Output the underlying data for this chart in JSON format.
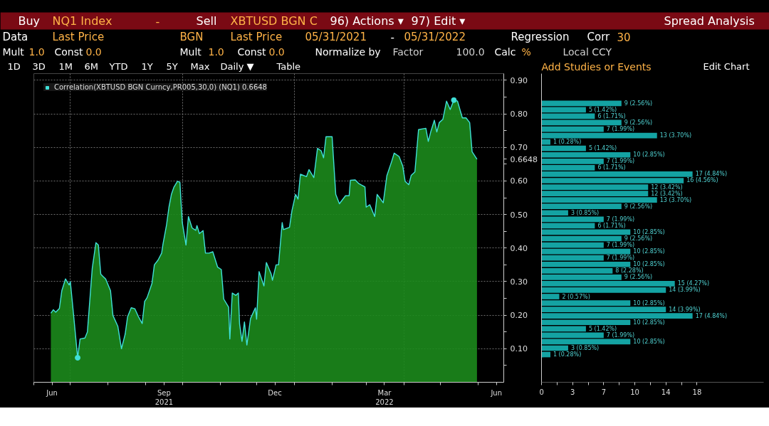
{
  "chart_data": [
    {
      "type": "area",
      "annotations": [
        "Buy",
        "NQ1 Index",
        "-",
        "Sell",
        "XBTUSD BGN C",
        "96) Actions ▾",
        "97) Edit ▾",
        "Spread Analysis",
        "Data",
        "Last Price",
        "BGN",
        "Last Price",
        "05/31/2021",
        "-",
        "05/31/2022",
        "Regression",
        "Corr",
        "30",
        "Mult",
        "1.0",
        "Const",
        "0.0",
        "Mult",
        "1.0",
        "Const",
        "0.0",
        "Normalize by",
        "Factor",
        "100.0",
        "Calc",
        "%",
        "Local CCY",
        "1D",
        "3D",
        "1M",
        "6M",
        "YTD",
        "1Y",
        "5Y",
        "Max",
        "Daily ▼",
        "Table",
        "Add Studies or Events",
        "Edit Chart"
      ],
      "xlim": [
        "2021-06-01",
        "2022-06-22"
      ],
      "xticks": [
        {
          "value": "2021-06-01",
          "label": null
        },
        {
          "value": "2021-06-16",
          "label": "Jun"
        },
        {
          "value": "2021-07-01",
          "label": null
        },
        {
          "value": "2021-08-01",
          "label": null
        },
        {
          "value": "2021-09-01",
          "label": null
        },
        {
          "value": "2021-09-16",
          "label": "Sep\n2021"
        },
        {
          "value": "2021-10-01",
          "label": null
        },
        {
          "value": "2021-11-01",
          "label": null
        },
        {
          "value": "2021-12-01",
          "label": null
        },
        {
          "value": "2021-12-16",
          "label": "Dec"
        },
        {
          "value": "2022-01-01",
          "label": null
        },
        {
          "value": "2022-02-01",
          "label": null
        },
        {
          "value": "2022-03-01",
          "label": null
        },
        {
          "value": "2022-03-16",
          "label": "Mar\n2022"
        },
        {
          "value": "2022-04-01",
          "label": null
        },
        {
          "value": "2022-05-01",
          "label": null
        },
        {
          "value": "2022-06-01",
          "label": null
        },
        {
          "value": "2022-06-16",
          "label": "Jun"
        }
      ],
      "ylim": [
        0,
        0.92
      ],
      "yticks": [
        {
          "value": 0.05,
          "label": null
        },
        {
          "value": 0.1,
          "label": "0.10"
        },
        {
          "value": 0.15,
          "label": null
        },
        {
          "value": 0.2,
          "label": "0.20"
        },
        {
          "value": 0.25,
          "label": null
        },
        {
          "value": 0.3,
          "label": "0.30"
        },
        {
          "value": 0.35,
          "label": null
        },
        {
          "value": 0.4,
          "label": "0.40"
        },
        {
          "value": 0.45,
          "label": null
        },
        {
          "value": 0.5,
          "label": "0.50"
        },
        {
          "value": 0.55,
          "label": null
        },
        {
          "value": 0.6,
          "label": "0.60"
        },
        {
          "value": 0.65,
          "label": null
        },
        {
          "value": 0.6648,
          "label": "0.6648"
        },
        {
          "value": 0.7,
          "label": "0.70"
        },
        {
          "value": 0.75,
          "label": null
        },
        {
          "value": 0.8,
          "label": "0.80"
        },
        {
          "value": 0.85,
          "label": null
        },
        {
          "value": 0.9,
          "label": "0.90"
        }
      ],
      "grid": true,
      "legend": "top left",
      "series": [
        {
          "name": "Correlation(XBTUSD BGN Curncy,PR005,30,0) (NQ1) 0.6648",
          "type": "area",
          "color": "#3fe0d8",
          "line_style": "solid",
          "x": [
            "2021-06-15",
            "2021-06-17",
            "2021-06-19",
            "2021-06-22",
            "2021-06-24",
            "2021-06-27",
            "2021-06-30",
            "2021-07-01",
            "2021-07-04",
            "2021-07-07",
            "2021-07-09",
            "2021-07-13",
            "2021-07-15",
            "2021-07-19",
            "2021-07-22",
            "2021-07-24",
            "2021-07-26",
            "2021-07-28",
            "2021-07-30",
            "2021-08-03",
            "2021-08-05",
            "2021-08-09",
            "2021-08-12",
            "2021-08-15",
            "2021-08-17",
            "2021-08-20",
            "2021-08-23",
            "2021-08-26",
            "2021-08-29",
            "2021-08-31",
            "2021-09-02",
            "2021-09-06",
            "2021-09-08",
            "2021-09-11",
            "2021-09-14",
            "2021-09-15",
            "2021-09-18",
            "2021-09-20",
            "2021-09-22",
            "2021-09-24",
            "2021-09-27",
            "2021-09-29",
            "2021-09-30",
            "2021-10-01",
            "2021-10-04",
            "2021-10-06",
            "2021-10-09",
            "2021-10-12",
            "2021-10-13",
            "2021-10-15",
            "2021-10-18",
            "2021-10-20",
            "2021-10-23",
            "2021-10-26",
            "2021-10-30",
            "2021-11-02",
            "2021-11-04",
            "2021-11-08",
            "2021-11-09",
            "2021-11-11",
            "2021-11-14",
            "2021-11-16",
            "2021-11-17",
            "2021-11-19",
            "2021-11-21",
            "2021-11-23",
            "2021-11-26",
            "2021-11-30",
            "2021-12-01",
            "2021-12-03",
            "2021-12-07",
            "2021-12-09",
            "2021-12-13",
            "2021-12-14",
            "2021-12-17",
            "2021-12-19",
            "2021-12-22",
            "2021-12-23",
            "2021-12-28",
            "2021-12-30",
            "2022-01-02",
            "2022-01-04",
            "2022-01-06",
            "2022-01-11",
            "2022-01-13",
            "2022-01-17",
            "2022-01-20",
            "2022-01-23",
            "2022-01-25",
            "2022-01-27",
            "2022-02-01",
            "2022-02-04",
            "2022-02-07",
            "2022-02-12",
            "2022-02-15",
            "2022-02-16",
            "2022-02-20",
            "2022-02-23",
            "2022-02-28",
            "2022-03-01",
            "2022-03-04",
            "2022-03-08",
            "2022-03-10",
            "2022-03-15",
            "2022-03-18",
            "2022-03-22",
            "2022-03-24",
            "2022-03-28",
            "2022-03-31",
            "2022-04-02",
            "2022-04-05",
            "2022-04-07",
            "2022-04-10",
            "2022-04-13",
            "2022-04-19",
            "2022-04-21",
            "2022-04-23",
            "2022-04-26",
            "2022-04-28",
            "2022-04-30",
            "2022-05-03",
            "2022-05-06",
            "2022-05-09",
            "2022-05-12",
            "2022-05-15",
            "2022-05-17",
            "2022-05-19",
            "2022-05-22",
            "2022-05-25",
            "2022-05-27",
            "2022-05-31"
          ],
          "values": [
            0.206,
            0.216,
            0.209,
            0.22,
            0.273,
            0.308,
            0.29,
            0.3,
            0.188,
            0.073,
            0.129,
            0.132,
            0.15,
            0.34,
            0.416,
            0.409,
            0.322,
            0.315,
            0.308,
            0.273,
            0.199,
            0.167,
            0.1,
            0.143,
            0.195,
            0.222,
            0.219,
            0.195,
            0.175,
            0.241,
            0.252,
            0.294,
            0.35,
            0.364,
            0.385,
            0.41,
            0.469,
            0.522,
            0.56,
            0.581,
            0.599,
            0.596,
            0.532,
            0.475,
            0.409,
            0.494,
            0.46,
            0.453,
            0.467,
            0.443,
            0.452,
            0.385,
            0.385,
            0.389,
            0.343,
            0.336,
            0.248,
            0.224,
            0.129,
            0.266,
            0.259,
            0.266,
            0.174,
            0.122,
            0.18,
            0.111,
            0.19,
            0.222,
            0.188,
            0.33,
            0.287,
            0.357,
            0.322,
            0.304,
            0.35,
            0.35,
            0.476,
            0.455,
            0.462,
            0.511,
            0.56,
            0.546,
            0.62,
            0.613,
            0.634,
            0.61,
            0.697,
            0.69,
            0.669,
            0.732,
            0.732,
            0.56,
            0.532,
            0.556,
            0.556,
            0.602,
            0.603,
            0.592,
            0.582,
            0.522,
            0.529,
            0.494,
            0.56,
            0.535,
            0.616,
            0.659,
            0.683,
            0.673,
            0.645,
            0.599,
            0.589,
            0.617,
            0.627,
            0.753,
            0.757,
            0.718,
            0.746,
            0.781,
            0.746,
            0.774,
            0.784,
            0.838,
            0.813,
            0.841,
            0.838,
            0.813,
            0.788,
            0.788,
            0.774,
            0.687,
            0.6648
          ]
        },
        {
          "type": "scatter",
          "color": "#3fe0d8",
          "marker": "circle",
          "x": [
            "2021-07-07",
            "2022-05-12"
          ],
          "values": [
            0.073,
            0.841
          ]
        }
      ]
    },
    {
      "type": "histogram",
      "orientation": "horizontal",
      "tick_labels": "x",
      "ylim": [
        0,
        0.92
      ],
      "bins": [
        0.073,
        0.0922,
        0.1114,
        0.1306,
        0.1498,
        0.169,
        0.1882,
        0.2074,
        0.2266,
        0.2458,
        0.265,
        0.2842,
        0.3034,
        0.3226,
        0.3418,
        0.361,
        0.3802,
        0.3994,
        0.4186,
        0.4378,
        0.457,
        0.4762,
        0.4954,
        0.5146,
        0.5338,
        0.553,
        0.5722,
        0.5914,
        0.6106,
        0.6298,
        0.649,
        0.6682,
        0.6874,
        0.7066,
        0.7258,
        0.745,
        0.7642,
        0.7834,
        0.8026,
        0.8218,
        0.841
      ],
      "values": [
        1,
        3,
        10,
        7,
        5,
        10,
        17,
        14,
        10,
        2,
        14,
        15,
        9,
        8,
        10,
        7,
        10,
        7,
        9,
        10,
        6,
        7,
        3,
        9,
        13,
        12,
        12,
        16,
        17,
        6,
        7,
        10,
        5,
        1,
        13,
        7,
        9,
        6,
        5,
        9
      ],
      "value_labels": [
        "1 (0.28%)",
        "3 (0.85%)",
        "10 (2.85%)",
        "7 (1.99%)",
        "5 (1.42%)",
        "10 (2.85%)",
        "17 (4.84%)",
        "14 (3.99%)",
        "10 (2.85%)",
        "2 (0.57%)",
        "14 (3.99%)",
        "15 (4.27%)",
        "9 (2.56%)",
        "8 (2.28%)",
        "10 (2.85%)",
        "7 (1.99%)",
        "10 (2.85%)",
        "7 (1.99%)",
        "9 (2.56%)",
        "10 (2.85%)",
        "6 (1.71%)",
        "7 (1.99%)",
        "3 (0.85%)",
        "9 (2.56%)",
        "13 (3.70%)",
        "12 (3.42%)",
        "12 (3.42%)",
        "16 (4.56%)",
        "17 (4.84%)",
        "6 (1.71%)",
        "7 (1.99%)",
        "10 (2.85%)",
        "5 (1.42%)",
        "1 (0.28%)",
        "13 (3.70%)",
        "7 (1.99%)",
        "9 (2.56%)",
        "6 (1.71%)",
        "5 (1.42%)",
        "9 (2.56%)"
      ],
      "color": "#14a3a3",
      "xlim": [
        0,
        25
      ],
      "xticks": [
        0,
        {
          "value": 1.75,
          "label": null
        },
        {
          "value": 3.5,
          "label": "3"
        },
        {
          "value": 5.25,
          "label": null
        },
        7,
        {
          "value": 8.75,
          "label": null
        },
        {
          "value": 10.5,
          "label": "10"
        },
        {
          "value": 12.25,
          "label": null
        },
        14,
        {
          "value": 15.75,
          "label": null
        },
        {
          "value": 17.5,
          "label": "18"
        }
      ]
    }
  ]
}
